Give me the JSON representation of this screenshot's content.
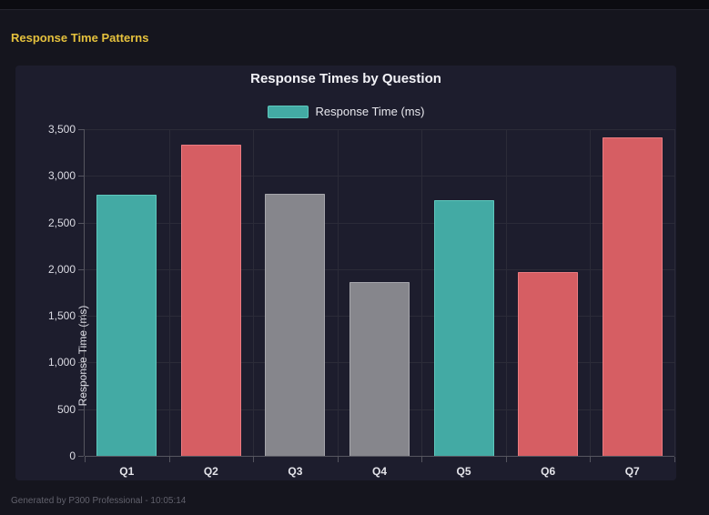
{
  "page": {
    "title": "Response Time Patterns",
    "footer": "Generated by P300 Professional - 10:05:14"
  },
  "colors": {
    "page_bg": "#15151e",
    "topbar_bg": "#0c0c11",
    "panel_bg": "#1d1d2d",
    "accent_yellow": "#e5c13d",
    "grid": "#2b2b38",
    "axis": "#55555f",
    "tick_text": "#dcdce4",
    "title_text": "#f2f2f7",
    "footer_text": "#61616c",
    "teal": "#43aaa4",
    "red": "#d65e63",
    "gray": "#86868c"
  },
  "chart_data": {
    "type": "bar",
    "title": "Response Times by Question",
    "legend": {
      "label": "Response Time (ms)",
      "fill": "#43aaa4",
      "border": "#5ec8bd",
      "position": "top"
    },
    "categories": [
      "Q1",
      "Q2",
      "Q3",
      "Q4",
      "Q5",
      "Q6",
      "Q7"
    ],
    "values": [
      2800,
      3330,
      2810,
      1860,
      2740,
      1970,
      3410
    ],
    "bar_colors": [
      {
        "fill": "#43aaa4",
        "border": "#5ec8bd"
      },
      {
        "fill": "#d65e63",
        "border": "#ea7b81"
      },
      {
        "fill": "#86868c",
        "border": "#a6a6ac"
      },
      {
        "fill": "#86868c",
        "border": "#a6a6ac"
      },
      {
        "fill": "#43aaa4",
        "border": "#5ec8bd"
      },
      {
        "fill": "#d65e63",
        "border": "#ea7b81"
      },
      {
        "fill": "#d65e63",
        "border": "#ea7b81"
      }
    ],
    "xlabel": "",
    "ylabel": "Response Time (ms)",
    "ylim": [
      0,
      3500
    ],
    "ytick_step": 500,
    "ytick_labels": [
      "0",
      "500",
      "1,000",
      "1,500",
      "2,000",
      "2,500",
      "3,000",
      "3,500"
    ],
    "grid": true
  }
}
